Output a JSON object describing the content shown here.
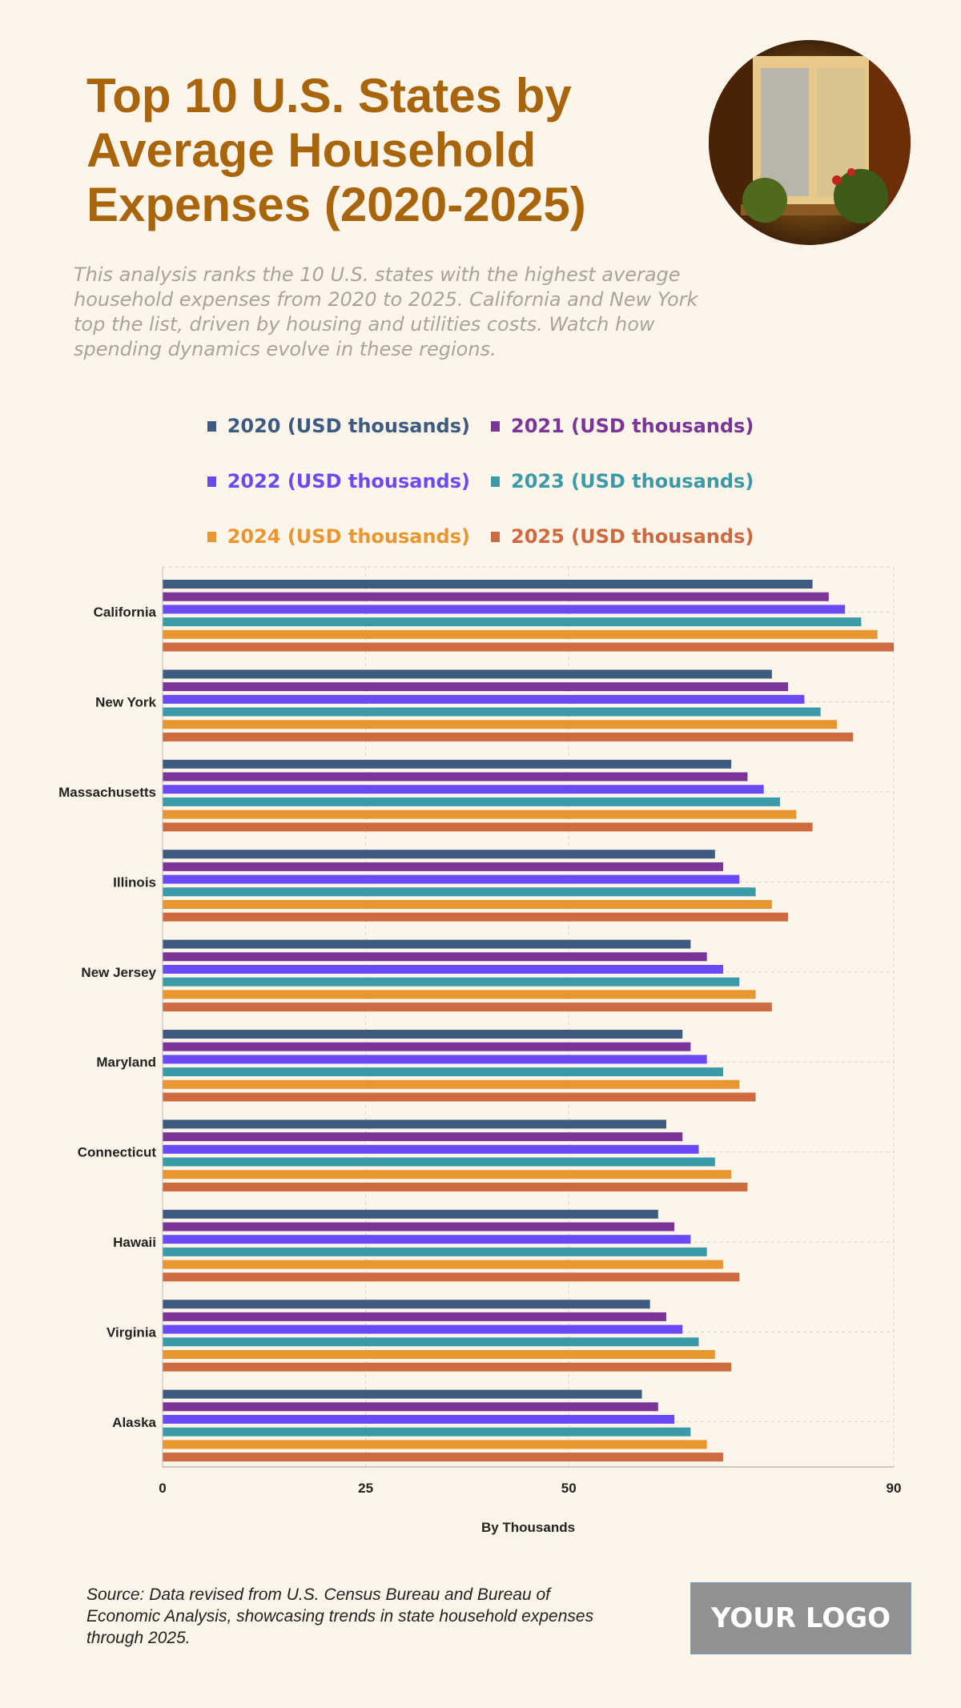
{
  "header": {
    "title": "Top 10 U.S. States by Average Household Expenses (2020-2025)",
    "description": "This analysis ranks the 10 U.S. states with the highest average household expenses from 2020 to 2025. California and New York top the list, driven by housing and utilities costs. Watch how spending dynamics evolve in these regions."
  },
  "footer": {
    "source": "Source: Data revised from U.S. Census Bureau and Bureau of Economic Analysis, showcasing trends in state household expenses through 2025.",
    "logo": "YOUR LOGO"
  },
  "chart_data": {
    "type": "bar",
    "orientation": "horizontal",
    "title": "Top 10 U.S. States by Average Household Expenses (2020-2025)",
    "xlabel": "By Thousands",
    "ylabel": "",
    "xlim": [
      0,
      90
    ],
    "xticks": [
      0,
      25,
      50,
      90
    ],
    "grid": true,
    "legend": "top",
    "categories": [
      "California",
      "New York",
      "Massachusetts",
      "Illinois",
      "New Jersey",
      "Maryland",
      "Connecticut",
      "Hawaii",
      "Virginia",
      "Alaska"
    ],
    "series": [
      {
        "name": "2020 (USD thousands)",
        "color": "#3d5a80",
        "values": [
          80,
          75,
          70,
          68,
          65,
          64,
          62,
          61,
          60,
          59
        ]
      },
      {
        "name": "2021 (USD thousands)",
        "color": "#7b3598",
        "values": [
          82,
          77,
          72,
          69,
          67,
          65,
          64,
          63,
          62,
          61
        ]
      },
      {
        "name": "2022 (USD thousands)",
        "color": "#6a4af5",
        "values": [
          84,
          79,
          74,
          71,
          69,
          67,
          66,
          65,
          64,
          63
        ]
      },
      {
        "name": "2023 (USD thousands)",
        "color": "#3a9aa8",
        "values": [
          86,
          81,
          76,
          73,
          71,
          69,
          68,
          67,
          66,
          65
        ]
      },
      {
        "name": "2024 (USD thousands)",
        "color": "#e8962f",
        "values": [
          88,
          83,
          78,
          75,
          73,
          71,
          70,
          69,
          68,
          67
        ]
      },
      {
        "name": "2025 (USD thousands)",
        "color": "#cd6a40",
        "values": [
          90,
          85,
          80,
          77,
          75,
          73,
          72,
          71,
          70,
          69
        ]
      }
    ]
  }
}
